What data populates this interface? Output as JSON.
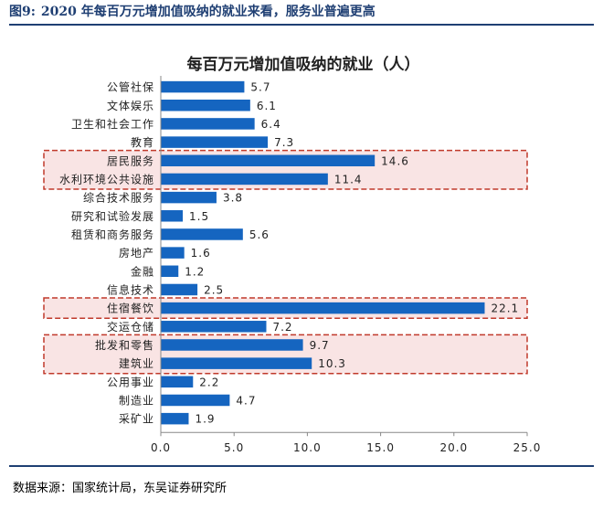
{
  "figure": {
    "number": "图9:",
    "title": "2020 年每百万元增加值吸纳的就业来看，服务业普遍更高",
    "source": "数据来源：国家统计局，东吴证券研究所"
  },
  "colors": {
    "bar": "#1565c0",
    "highlight_fill": "#f9e4e4",
    "highlight_border": "#c0392b",
    "header": "#1f3f73"
  },
  "chart_data": {
    "type": "bar",
    "orientation": "horizontal",
    "title": "每百万元增加值吸纳的就业（人）",
    "categories": [
      "公管社保",
      "文体娱乐",
      "卫生和社会工作",
      "教育",
      "居民服务",
      "水利环境公共设施",
      "综合技术服务",
      "研究和试验发展",
      "租赁和商务服务",
      "房地产",
      "金融",
      "信息技术",
      "住宿餐饮",
      "交运仓储",
      "批发和零售",
      "建筑业",
      "公用事业",
      "制造业",
      "采矿业"
    ],
    "values": [
      5.7,
      6.1,
      6.4,
      7.3,
      14.6,
      11.4,
      3.8,
      1.5,
      5.6,
      1.6,
      1.2,
      2.5,
      22.1,
      7.2,
      9.7,
      10.3,
      2.2,
      4.7,
      1.9
    ],
    "value_labels": [
      "5.7",
      "6.1",
      "6.4",
      "7.3",
      "14.6",
      "11.4",
      "3.8",
      "1.5",
      "5.6",
      "1.6",
      "1.2",
      "2.5",
      "22.1",
      "7.2",
      "9.7",
      "10.3",
      "2.2",
      "4.7",
      "1.9"
    ],
    "xlim": [
      0,
      25
    ],
    "xticks": [
      "0.0",
      "5.0",
      "10.0",
      "15.0",
      "20.0",
      "25.0"
    ],
    "xtick_values": [
      0,
      5,
      10,
      15,
      20,
      25
    ],
    "highlight_groups": [
      [
        4,
        5
      ],
      [
        12
      ],
      [
        14,
        15
      ]
    ],
    "grid": false
  }
}
